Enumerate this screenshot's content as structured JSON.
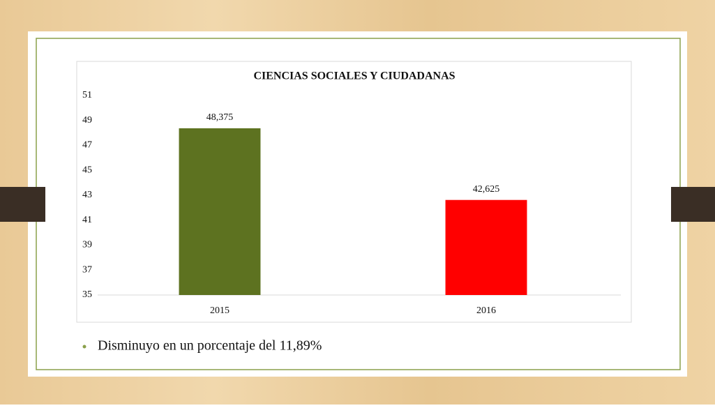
{
  "chart_data": {
    "type": "bar",
    "title": "CIENCIAS  SOCIALES  Y CIUDADANAS",
    "categories": [
      "2015",
      "2016"
    ],
    "values": [
      48.375,
      42.625
    ],
    "value_labels": [
      "48,375",
      "42,625"
    ],
    "colors": [
      "#5d7220",
      "#ff0000"
    ],
    "ylim": [
      35,
      51
    ],
    "yticks": [
      35,
      37,
      39,
      41,
      43,
      45,
      47,
      49,
      51
    ],
    "grid": false
  },
  "bullets": [
    "Disminuyo en un porcentaje del 11,89%"
  ]
}
